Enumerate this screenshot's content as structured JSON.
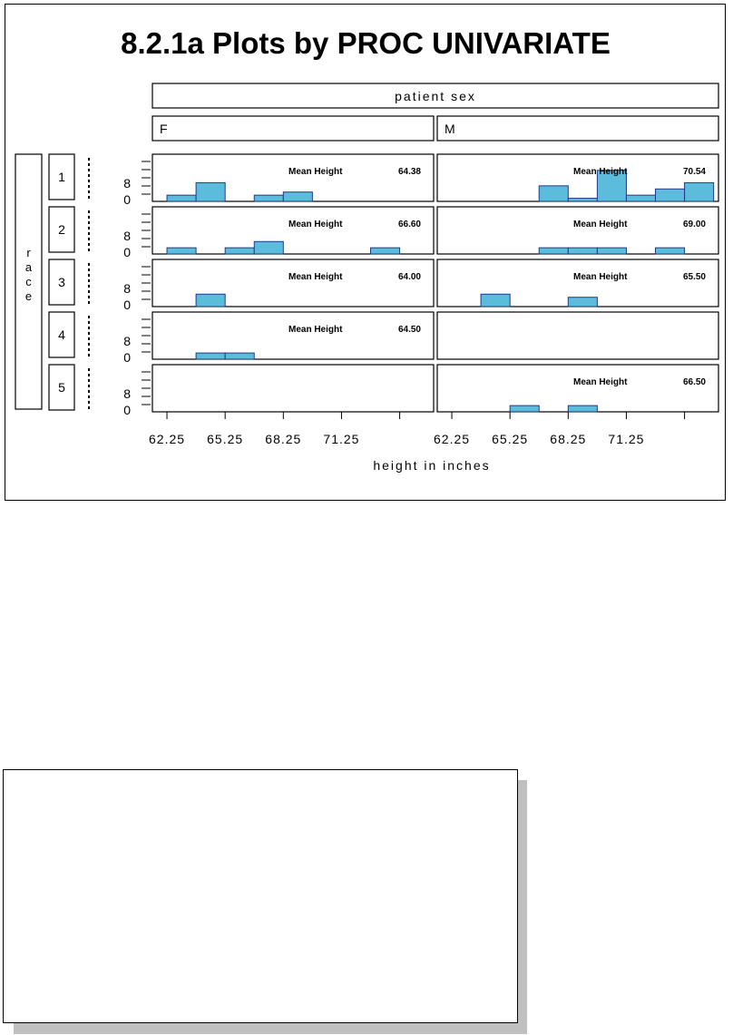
{
  "chart_data": {
    "type": "bar",
    "title": "8.2.1a Plots by PROC UNIVARIATE",
    "column_variable": "patient sex",
    "row_variable": "race",
    "xlabel": "height in inches",
    "x_tick_labels": [
      "62.25",
      "65.25",
      "68.25",
      "71.25"
    ],
    "y_tick_labels": [
      "0",
      "8"
    ],
    "ylim": [
      0,
      14
    ],
    "bin_width": 1.5,
    "columns": [
      "F",
      "M"
    ],
    "rows": [
      "1",
      "2",
      "3",
      "4",
      "5"
    ],
    "mean_label": "Mean Height",
    "cells": [
      {
        "row": "1",
        "col": "F",
        "mean": "64.38",
        "bins": [
          {
            "x": 62.25,
            "y": 2
          },
          {
            "x": 63.75,
            "y": 6
          },
          {
            "x": 66.75,
            "y": 2
          },
          {
            "x": 68.25,
            "y": 3
          }
        ]
      },
      {
        "row": "1",
        "col": "M",
        "mean": "70.54",
        "bins": [
          {
            "x": 66.75,
            "y": 5
          },
          {
            "x": 68.25,
            "y": 1
          },
          {
            "x": 69.75,
            "y": 10
          },
          {
            "x": 71.25,
            "y": 2
          },
          {
            "x": 72.75,
            "y": 4
          },
          {
            "x": 74.25,
            "y": 6
          }
        ]
      },
      {
        "row": "2",
        "col": "F",
        "mean": "66.60",
        "bins": [
          {
            "x": 62.25,
            "y": 2
          },
          {
            "x": 65.25,
            "y": 2
          },
          {
            "x": 66.75,
            "y": 4
          },
          {
            "x": 72.75,
            "y": 2
          }
        ]
      },
      {
        "row": "2",
        "col": "M",
        "mean": "69.00",
        "bins": [
          {
            "x": 66.75,
            "y": 2
          },
          {
            "x": 68.25,
            "y": 2
          },
          {
            "x": 69.75,
            "y": 2
          },
          {
            "x": 72.75,
            "y": 2
          }
        ]
      },
      {
        "row": "3",
        "col": "F",
        "mean": "64.00",
        "bins": [
          {
            "x": 63.75,
            "y": 4
          }
        ]
      },
      {
        "row": "3",
        "col": "M",
        "mean": "65.50",
        "bins": [
          {
            "x": 63.75,
            "y": 4
          },
          {
            "x": 68.25,
            "y": 3
          }
        ]
      },
      {
        "row": "4",
        "col": "F",
        "mean": "64.50",
        "bins": [
          {
            "x": 63.75,
            "y": 2
          },
          {
            "x": 65.25,
            "y": 2
          }
        ]
      },
      {
        "row": "4",
        "col": "M",
        "mean": "",
        "bins": []
      },
      {
        "row": "5",
        "col": "F",
        "mean": "",
        "bins": []
      },
      {
        "row": "5",
        "col": "M",
        "mean": "66.50",
        "bins": [
          {
            "x": 65.25,
            "y": 2
          },
          {
            "x": 68.25,
            "y": 2
          }
        ]
      }
    ],
    "colors": {
      "bar_fill": "#5bbcdc",
      "bar_stroke": "#1f3a8a",
      "frame": "#000000"
    }
  }
}
